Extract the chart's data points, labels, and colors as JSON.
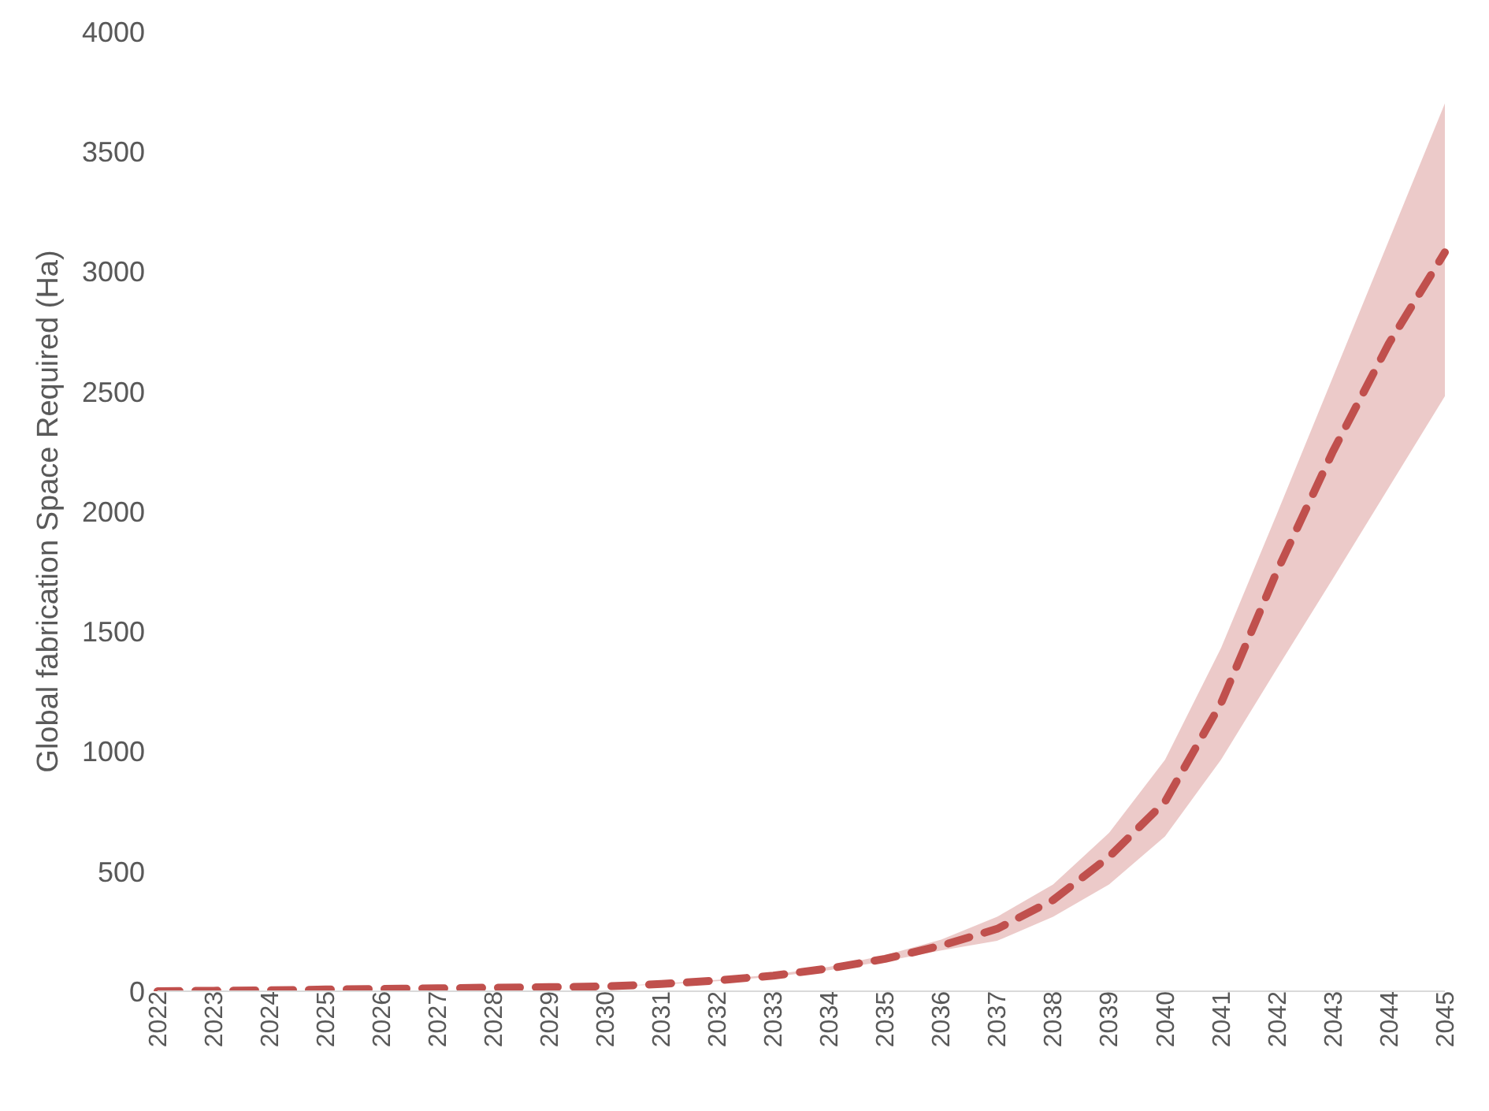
{
  "chart_data": {
    "type": "line",
    "ylabel": "Global fabrication Space Required (Ha)",
    "categories": [
      "2022",
      "2023",
      "2024",
      "2025",
      "2026",
      "2027",
      "2028",
      "2029",
      "2030",
      "2031",
      "2032",
      "2033",
      "2034",
      "2035",
      "2036",
      "2037",
      "2038",
      "2039",
      "2040",
      "2041",
      "2042",
      "2043",
      "2044",
      "2045"
    ],
    "ylim": [
      0,
      4000
    ],
    "yticks": [
      0,
      500,
      1000,
      1500,
      2000,
      2500,
      3000,
      3500,
      4000
    ],
    "grid": false,
    "legend": false,
    "line_style": "dashed",
    "marker": "none",
    "series": [
      {
        "color": "#c0504d",
        "values": [
          0,
          2,
          4,
          7,
          10,
          12,
          15,
          17,
          20,
          30,
          45,
          65,
          95,
          135,
          190,
          260,
          380,
          560,
          790,
          1200,
          1750,
          2250,
          2700,
          3080
        ],
        "lower": [
          0,
          2,
          4,
          7,
          10,
          12,
          15,
          17,
          20,
          28,
          42,
          60,
          88,
          125,
          170,
          210,
          310,
          445,
          645,
          965,
          1345,
          1720,
          2100,
          2480
        ],
        "upper": [
          0,
          2,
          4,
          7,
          10,
          12,
          15,
          17,
          20,
          32,
          48,
          70,
          102,
          150,
          215,
          310,
          445,
          660,
          965,
          1430,
          1990,
          2560,
          3130,
          3700
        ]
      }
    ]
  }
}
